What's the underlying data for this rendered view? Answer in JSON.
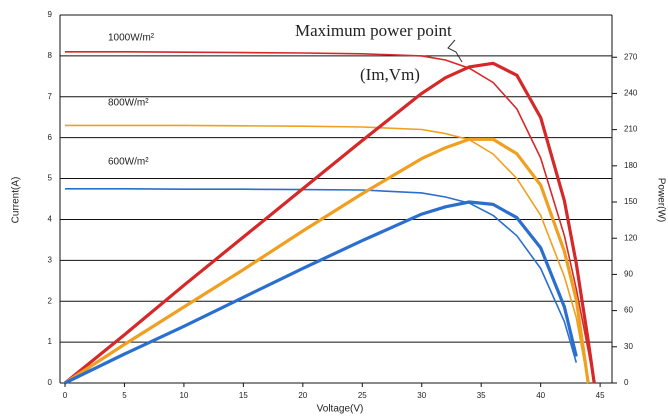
{
  "chart_data": {
    "type": "line",
    "x_label": "Voltage(V)",
    "y_label": "Current(A)",
    "y2_label": "Power(W)",
    "annotations": [
      "1000W/m²",
      "800W/m²",
      "600W/m²",
      "Maximum power point",
      "(Im,Vm)"
    ],
    "x": [
      0,
      5,
      10,
      15,
      20,
      25,
      30,
      32,
      34,
      36,
      38,
      40,
      42,
      43,
      44,
      44.5
    ],
    "xlim": [
      0,
      46
    ],
    "xticks": [
      0,
      5,
      10,
      15,
      20,
      25,
      30,
      35,
      40,
      45
    ],
    "ylim": [
      0,
      9
    ],
    "yticks": [
      0,
      1,
      2,
      3,
      4,
      5,
      6,
      7,
      8,
      9
    ],
    "y2lim": [
      0,
      305
    ],
    "y2ticks": [
      0,
      30,
      60,
      90,
      120,
      150,
      180,
      210,
      240,
      270
    ],
    "grid": true,
    "series": [
      {
        "color": "#d62828",
        "axis": "y",
        "values": [
          8.1,
          8.1,
          8.09,
          8.08,
          8.07,
          8.05,
          8.0,
          7.9,
          7.7,
          7.35,
          6.7,
          5.5,
          3.6,
          2.3,
          0.8,
          0
        ]
      },
      {
        "color": "#f0a020",
        "axis": "y",
        "values": [
          6.3,
          6.3,
          6.3,
          6.29,
          6.28,
          6.26,
          6.2,
          6.1,
          5.95,
          5.6,
          5.0,
          4.1,
          2.6,
          1.6,
          0,
          null
        ]
      },
      {
        "color": "#2a6fd0",
        "axis": "y",
        "values": [
          4.75,
          4.75,
          4.74,
          4.74,
          4.73,
          4.72,
          4.65,
          4.55,
          4.4,
          4.1,
          3.6,
          2.8,
          1.5,
          0.5,
          null,
          null
        ]
      },
      {
        "color": "#d62828",
        "axis": "y2",
        "values": [
          0,
          40,
          81,
          121,
          161,
          201,
          240,
          253,
          262,
          265,
          255,
          220,
          151,
          99,
          35,
          0
        ]
      },
      {
        "color": "#f0a020",
        "axis": "y2",
        "values": [
          0,
          32,
          63,
          94,
          126,
          157,
          186,
          195,
          202,
          202,
          190,
          164,
          109,
          69,
          0,
          null
        ]
      },
      {
        "color": "#2a6fd0",
        "axis": "y2",
        "values": [
          0,
          24,
          47,
          71,
          95,
          118,
          140,
          146,
          150,
          148,
          137,
          112,
          63,
          22,
          null,
          null
        ]
      }
    ]
  }
}
